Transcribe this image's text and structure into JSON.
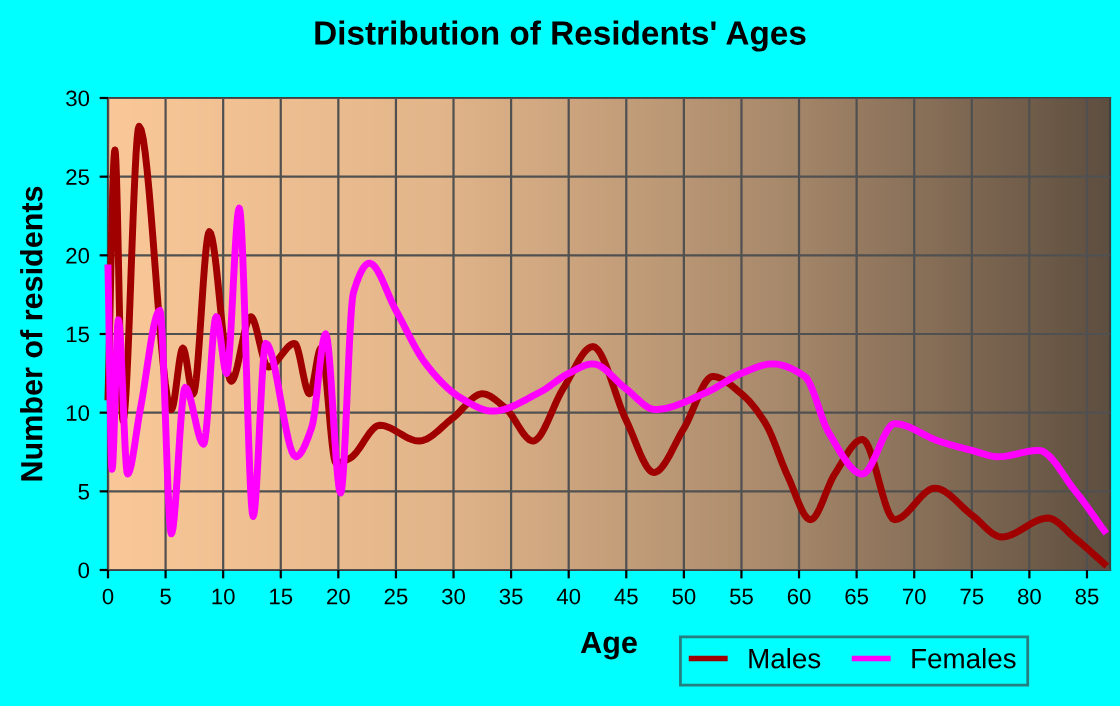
{
  "chart_data": {
    "type": "line",
    "title": "Distribution of Residents' Ages",
    "xlabel": "Age",
    "ylabel": "Number of residents",
    "xlim": [
      0,
      87
    ],
    "xticks": [
      0,
      5,
      10,
      15,
      20,
      25,
      30,
      35,
      40,
      45,
      50,
      55,
      60,
      65,
      70,
      75,
      80,
      85
    ],
    "ylim": [
      0,
      30
    ],
    "yticks": [
      0,
      5,
      10,
      15,
      20,
      25,
      30
    ],
    "grid": true,
    "legend": "bottom right",
    "series": [
      {
        "name": "Males",
        "color": "#a00000",
        "x": [
          0,
          0.6,
          1.3,
          2.7,
          5.5,
          6.5,
          7.4,
          8.8,
          10.7,
          12.4,
          13.9,
          16.2,
          17.5,
          18.5,
          19.8,
          21,
          23.6,
          27,
          30,
          32.5,
          34.5,
          36.9,
          39.5,
          42.1,
          45,
          47.4,
          50,
          52.5,
          55,
          57.1,
          59,
          61,
          63.1,
          65.5,
          68.3,
          71.8,
          75,
          77.6,
          81.6,
          84,
          86.5
        ],
        "values": [
          11,
          26.7,
          9.5,
          28.2,
          10.2,
          14.1,
          11.2,
          21.5,
          12,
          16.1,
          12.9,
          14.4,
          11.2,
          14.1,
          6.8,
          7.1,
          9.2,
          8.2,
          9.7,
          11.2,
          10.3,
          8.2,
          11.5,
          14.2,
          9.5,
          6.2,
          9,
          12.3,
          11.2,
          9.3,
          6,
          3.2,
          6.1,
          8.3,
          3.2,
          5.2,
          3.5,
          2.1,
          3.3,
          2,
          0.4
        ]
      },
      {
        "name": "Females",
        "color": "#ff00ff",
        "x": [
          0,
          0.35,
          0.9,
          1.7,
          2.8,
          4.5,
          5.5,
          6.7,
          8.3,
          9.4,
          10.3,
          11.4,
          12.6,
          13.7,
          16.3,
          17.7,
          18.9,
          20.2,
          21.3,
          22.7,
          25,
          27.6,
          30.5,
          33.4,
          37.5,
          40,
          42.1,
          45,
          47.5,
          52,
          55,
          57.7,
          60.5,
          62.6,
          65.5,
          68.3,
          72.1,
          75,
          77.3,
          80.8,
          84,
          86.5
        ],
        "values": [
          19.2,
          6.4,
          15.9,
          6.1,
          10.2,
          16.5,
          2.3,
          11.6,
          8,
          16.1,
          12.5,
          23,
          3.4,
          14.4,
          7.2,
          9.1,
          15,
          4.9,
          17.6,
          19.5,
          16.5,
          13.1,
          11,
          10.1,
          11.3,
          12.5,
          13.1,
          11.5,
          10.2,
          11.3,
          12.5,
          13.1,
          12.3,
          8.7,
          6.1,
          9.3,
          8.2,
          7.6,
          7.2,
          7.6,
          5,
          2.5
        ]
      }
    ]
  }
}
